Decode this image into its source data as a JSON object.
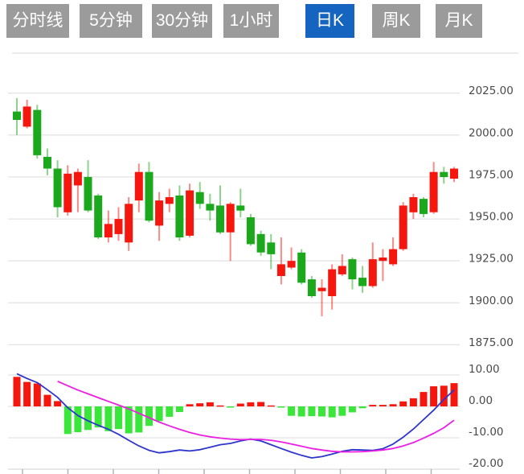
{
  "tabs": {
    "items": [
      {
        "label": "分时线"
      },
      {
        "label": "5分钟"
      },
      {
        "label": "30分钟"
      },
      {
        "label": "1小时"
      },
      {
        "label": "日K"
      },
      {
        "label": "周K"
      },
      {
        "label": "月K"
      }
    ],
    "active_label": "日K",
    "active_index": 4,
    "inactive_color": "#9b9b9b",
    "active_color": "#1565c0",
    "text_color": "#ffffff"
  },
  "colors": {
    "candle_up_red": "#f5170d",
    "candle_down_green": "#1ca81c",
    "macd_bar_red": "#f5170d",
    "macd_bar_green": "#39e639",
    "dif_line_blue": "#2c35cc",
    "dea_line_magenta": "#eb1fe3",
    "gridline": "#e4e4e4",
    "top_border": "#ececec",
    "axis_text": "#4a4a4a",
    "bottom_axis": "#d9d9d9",
    "tick": "#aab4bc"
  },
  "price_axis": {
    "labels": [
      "2025.00",
      "2000.00",
      "1975.00",
      "1950.00",
      "1925.00",
      "1900.00",
      "1875.00"
    ],
    "values": [
      2025,
      2000,
      1975,
      1950,
      1925,
      1900,
      1875
    ]
  },
  "macd_axis": {
    "labels": [
      "10.00",
      "0.00",
      "-10.00",
      "-20.00"
    ],
    "values": [
      10,
      0,
      -10,
      -20
    ]
  },
  "chart_data": {
    "type": "candlestick_with_macd",
    "panels": [
      "daily_candles",
      "macd_indicator"
    ],
    "price_ylim": [
      1872,
      2030
    ],
    "macd_ylim": [
      -20,
      12
    ],
    "grid": "horizontal_only",
    "x_axis": {
      "labels": [],
      "unlabeled_tick_count": 10
    },
    "candle_columns": [
      "color",
      "high",
      "body_top",
      "body_bottom",
      "low"
    ],
    "candles": [
      [
        "green",
        2022,
        2014,
        2009,
        2000
      ],
      [
        "red",
        2021,
        2017,
        2005,
        2004
      ],
      [
        "green",
        2018,
        2015,
        1988,
        1986
      ],
      [
        "green",
        1992,
        1987,
        1980,
        1976
      ],
      [
        "green",
        1985,
        1980,
        1957,
        1951
      ],
      [
        "red",
        1982,
        1977,
        1954,
        1952
      ],
      [
        "red",
        1980,
        1978,
        1970,
        1954
      ],
      [
        "green",
        1985,
        1975,
        1955,
        1954
      ],
      [
        "green",
        1965,
        1964,
        1939,
        1938
      ],
      [
        "red",
        1955,
        1947,
        1939,
        1936
      ],
      [
        "red",
        1957,
        1950,
        1941,
        1937
      ],
      [
        "red",
        1963,
        1959,
        1936,
        1931
      ],
      [
        "red",
        1983,
        1978,
        1961,
        1954
      ],
      [
        "green",
        1984,
        1978,
        1949,
        1948
      ],
      [
        "red",
        1966,
        1961,
        1946,
        1937
      ],
      [
        "red",
        1968,
        1963,
        1959,
        1954
      ],
      [
        "green",
        1970,
        1964,
        1939,
        1937
      ],
      [
        "red",
        1971,
        1967,
        1940,
        1939
      ],
      [
        "green",
        1972,
        1966,
        1959,
        1956
      ],
      [
        "green",
        1965,
        1959,
        1955,
        1949
      ],
      [
        "green",
        1970,
        1958,
        1942,
        1941
      ],
      [
        "red",
        1960,
        1959,
        1942,
        1925
      ],
      [
        "green",
        1968,
        1958,
        1955,
        1951
      ],
      [
        "green",
        1953,
        1951,
        1935,
        1934
      ],
      [
        "green",
        1943,
        1941,
        1930,
        1928
      ],
      [
        "green",
        1941,
        1936,
        1929,
        1920
      ],
      [
        "red",
        1939,
        1923,
        1916,
        1911
      ],
      [
        "red",
        1933,
        1925,
        1921,
        1920
      ],
      [
        "green",
        1932,
        1930,
        1912,
        1911
      ],
      [
        "green",
        1916,
        1914,
        1904,
        1903
      ],
      [
        "red",
        1914,
        1909,
        1907,
        1892
      ],
      [
        "red",
        1923,
        1920,
        1904,
        1896
      ],
      [
        "red",
        1929,
        1922,
        1917,
        1916
      ],
      [
        "green",
        1927,
        1926,
        1914,
        1908
      ],
      [
        "green",
        1922,
        1915,
        1910,
        1906
      ],
      [
        "red",
        1936,
        1926,
        1910,
        1909
      ],
      [
        "red",
        1932,
        1927,
        1925,
        1913
      ],
      [
        "red",
        1939,
        1932,
        1923,
        1922
      ],
      [
        "red",
        1960,
        1958,
        1932,
        1931
      ],
      [
        "red",
        1965,
        1963,
        1954,
        1950
      ],
      [
        "green",
        1963,
        1962,
        1953,
        1951
      ],
      [
        "red",
        1984,
        1978,
        1954,
        1953
      ],
      [
        "green",
        1981,
        1978,
        1975,
        1971
      ],
      [
        "red",
        1981,
        1980,
        1974,
        1972
      ]
    ],
    "macd": {
      "histogram": [
        9.4,
        7.8,
        7.3,
        3.7,
        1.7,
        -8.8,
        -8.2,
        -7.5,
        -6.7,
        -7.9,
        -7.2,
        -8.6,
        -8.3,
        -6.2,
        -4.7,
        -3.3,
        -1.8,
        0.7,
        1.0,
        1.3,
        0.3,
        -0.2,
        0.9,
        1.3,
        1.4,
        0.3,
        -0.3,
        -3.0,
        -3.2,
        -3.1,
        -3.2,
        -3.5,
        -3.0,
        -1.9,
        -0.6,
        0.5,
        0.5,
        0.7,
        1.6,
        2.6,
        4.6,
        6.4,
        6.6,
        7.4
      ],
      "dif_blue": [
        10.4,
        8.9,
        7.6,
        5.3,
        2.9,
        -0.4,
        -2.9,
        -4.6,
        -6.0,
        -7.3,
        -8.9,
        -10.8,
        -12.6,
        -14.0,
        -14.8,
        -14.4,
        -13.9,
        -14.2,
        -13.8,
        -13.0,
        -12.2,
        -11.8,
        -11.0,
        -10.4,
        -11.0,
        -12.2,
        -13.4,
        -14.6,
        -15.6,
        -16.4,
        -16.0,
        -15.2,
        -14.3,
        -13.8,
        -13.9,
        -14.0,
        -13.5,
        -12.0,
        -9.8,
        -7.2,
        -4.2,
        -1.2,
        2.2,
        5.2
      ],
      "dea_magenta": [
        null,
        null,
        null,
        null,
        8.0,
        6.6,
        5.2,
        4.0,
        2.8,
        1.6,
        0.4,
        -0.8,
        -2.2,
        -3.6,
        -5.0,
        -6.2,
        -7.3,
        -8.3,
        -9.1,
        -9.7,
        -10.1,
        -10.4,
        -10.6,
        -10.5,
        -10.5,
        -10.8,
        -11.3,
        -12.0,
        -12.7,
        -13.4,
        -13.9,
        -14.3,
        -14.5,
        -14.5,
        -14.4,
        -14.2,
        -13.9,
        -13.4,
        -12.6,
        -11.5,
        -10.1,
        -8.6,
        -6.8,
        -4.4
      ]
    }
  }
}
